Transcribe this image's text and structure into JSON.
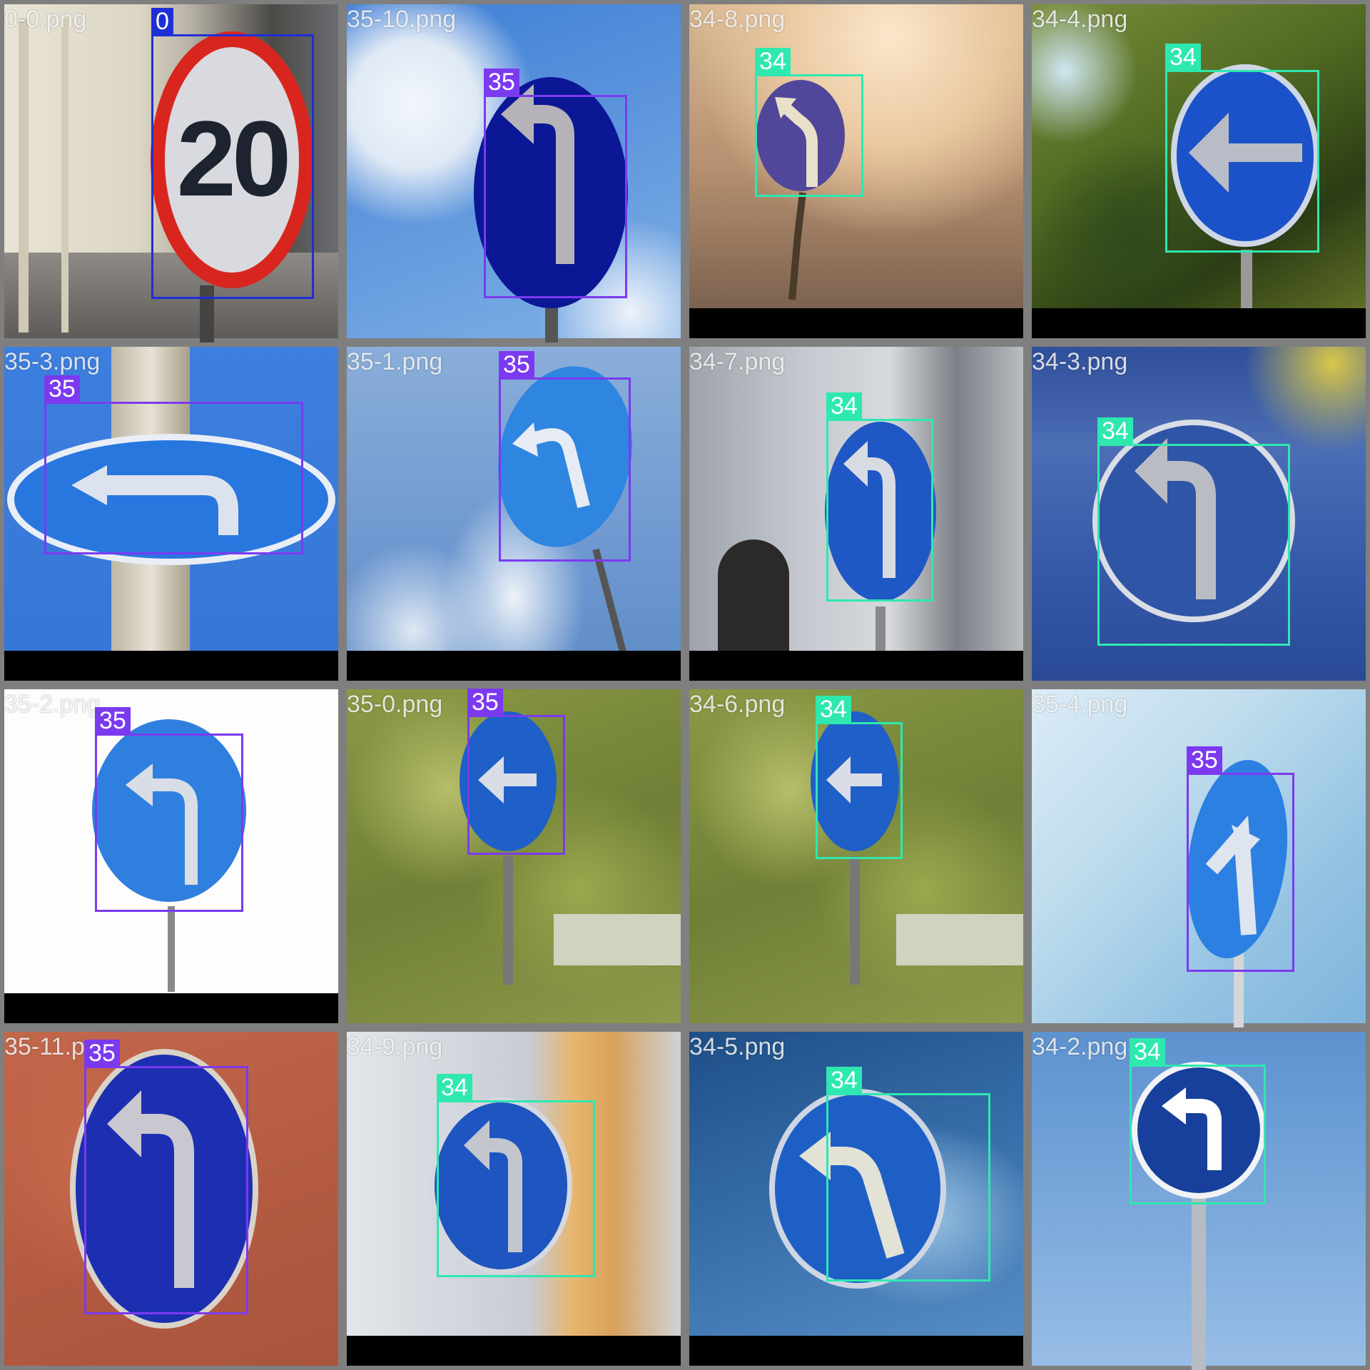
{
  "colors": {
    "class_0": "#1f2fd8",
    "class_34": "#2ee8b0",
    "class_35": "#7b3af0"
  },
  "tiles": [
    {
      "filename": "0-0.png",
      "box_label": "0"
    },
    {
      "filename": "35-10.png",
      "box_label": "35"
    },
    {
      "filename": "34-8.png",
      "box_label": "34"
    },
    {
      "filename": "34-4.png",
      "box_label": "34"
    },
    {
      "filename": "35-3.png",
      "box_label": "35"
    },
    {
      "filename": "35-1.png",
      "box_label": "35"
    },
    {
      "filename": "34-7.png",
      "box_label": "34"
    },
    {
      "filename": "34-3.png",
      "box_label": "34"
    },
    {
      "filename": "35-2.png",
      "box_label": "35"
    },
    {
      "filename": "35-0.png",
      "box_label": "35"
    },
    {
      "filename": "34-6.png",
      "box_label": "34"
    },
    {
      "filename": "35-4.png",
      "box_label": "35"
    },
    {
      "filename": "35-11.png",
      "box_label": "35"
    },
    {
      "filename": "34-9.png",
      "box_label": "34"
    },
    {
      "filename": "34-5.png",
      "box_label": "34"
    },
    {
      "filename": "34-2.png",
      "box_label": "34"
    }
  ],
  "speed_sign_text": "20"
}
